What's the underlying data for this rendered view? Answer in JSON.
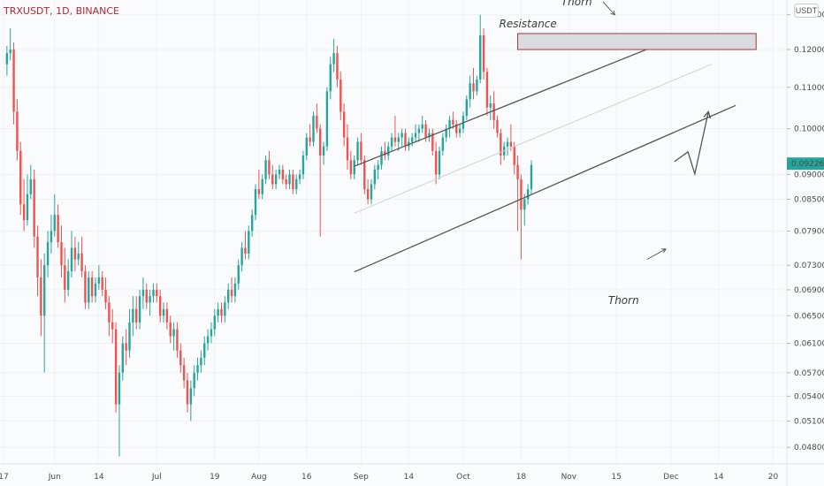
{
  "header": {
    "symbol_label": "TRXUSDT, 1D, BINANCE",
    "currency_label": "USDT"
  },
  "annotations": {
    "resistance": "Resistance",
    "thorn_top": "Thorn",
    "thorn_bottom": "Thorn"
  },
  "colors": {
    "up": "#26a69a",
    "down": "#ef5350",
    "last_price_bg": "#26a69a",
    "line": "#555555",
    "resistance_fill": "#d9dbdf",
    "resistance_border": "#b0303a"
  },
  "chart_data": {
    "type": "candlestick",
    "title": "",
    "xlabel": "",
    "ylabel": "",
    "ylim": [
      0.0462,
      0.1345
    ],
    "y_scale": "log",
    "last_price": 0.09226,
    "y_ticks": [
      0.13,
      0.12,
      0.11,
      0.1,
      0.09,
      0.085,
      0.079,
      0.073,
      0.069,
      0.065,
      0.061,
      0.057,
      0.054,
      0.051,
      0.048
    ],
    "y_tick_labels": [
      "0.13000",
      "0.12000",
      "0.11000",
      "0.10000",
      "0.09000",
      "0.08500",
      "0.07900",
      "0.07300",
      "0.06900",
      "0.06500",
      "0.06100",
      "0.05700",
      "0.05400",
      "0.05100",
      "0.04800"
    ],
    "x_tick_labels": [
      "17",
      "Jun",
      "14",
      "Jul",
      "19",
      "Aug",
      "16",
      "Sep",
      "14",
      "Oct",
      "18",
      "Nov",
      "15",
      "Dec",
      "14",
      "20"
    ],
    "x_tick_days": [
      0,
      15,
      28,
      45,
      62,
      75,
      89,
      105,
      119,
      135,
      152,
      166,
      180,
      196,
      210,
      226
    ],
    "x_start": "2021-05-17",
    "x_end": "2021-12-31",
    "candles": [
      [
        0.116,
        0.121,
        0.113,
        0.119
      ],
      [
        0.119,
        0.126,
        0.117,
        0.12
      ],
      [
        0.12,
        0.122,
        0.101,
        0.104
      ],
      [
        0.104,
        0.107,
        0.093,
        0.095
      ],
      [
        0.095,
        0.097,
        0.082,
        0.084
      ],
      [
        0.084,
        0.089,
        0.079,
        0.081
      ],
      [
        0.081,
        0.09,
        0.08,
        0.086
      ],
      [
        0.086,
        0.092,
        0.085,
        0.089
      ],
      [
        0.089,
        0.091,
        0.076,
        0.078
      ],
      [
        0.078,
        0.08,
        0.068,
        0.071
      ],
      [
        0.071,
        0.074,
        0.062,
        0.065
      ],
      [
        0.065,
        0.075,
        0.057,
        0.073
      ],
      [
        0.073,
        0.079,
        0.071,
        0.077
      ],
      [
        0.077,
        0.082,
        0.075,
        0.079
      ],
      [
        0.079,
        0.086,
        0.078,
        0.082
      ],
      [
        0.082,
        0.084,
        0.076,
        0.077
      ],
      [
        0.077,
        0.08,
        0.071,
        0.073
      ],
      [
        0.073,
        0.076,
        0.067,
        0.069
      ],
      [
        0.069,
        0.074,
        0.068,
        0.072
      ],
      [
        0.072,
        0.079,
        0.071,
        0.076
      ],
      [
        0.076,
        0.078,
        0.072,
        0.074
      ],
      [
        0.074,
        0.077,
        0.073,
        0.075
      ],
      [
        0.075,
        0.078,
        0.071,
        0.072
      ],
      [
        0.072,
        0.073,
        0.066,
        0.067
      ],
      [
        0.067,
        0.072,
        0.066,
        0.071
      ],
      [
        0.071,
        0.072,
        0.067,
        0.068
      ],
      [
        0.068,
        0.071,
        0.067,
        0.07
      ],
      [
        0.07,
        0.073,
        0.069,
        0.071
      ],
      [
        0.071,
        0.072,
        0.068,
        0.069
      ],
      [
        0.069,
        0.071,
        0.066,
        0.067
      ],
      [
        0.067,
        0.068,
        0.062,
        0.064
      ],
      [
        0.064,
        0.066,
        0.061,
        0.063
      ],
      [
        0.063,
        0.064,
        0.052,
        0.053
      ],
      [
        0.053,
        0.058,
        0.047,
        0.057
      ],
      [
        0.057,
        0.062,
        0.056,
        0.061
      ],
      [
        0.061,
        0.063,
        0.058,
        0.06
      ],
      [
        0.06,
        0.066,
        0.059,
        0.064
      ],
      [
        0.064,
        0.068,
        0.062,
        0.066
      ],
      [
        0.066,
        0.068,
        0.063,
        0.064
      ],
      [
        0.064,
        0.069,
        0.063,
        0.068
      ],
      [
        0.068,
        0.071,
        0.066,
        0.069
      ],
      [
        0.069,
        0.07,
        0.066,
        0.067
      ],
      [
        0.067,
        0.069,
        0.065,
        0.068
      ],
      [
        0.068,
        0.07,
        0.067,
        0.069
      ],
      [
        0.069,
        0.07,
        0.067,
        0.068
      ],
      [
        0.068,
        0.069,
        0.064,
        0.065
      ],
      [
        0.065,
        0.067,
        0.064,
        0.066
      ],
      [
        0.066,
        0.067,
        0.063,
        0.064
      ],
      [
        0.064,
        0.065,
        0.061,
        0.062
      ],
      [
        0.062,
        0.064,
        0.06,
        0.063
      ],
      [
        0.063,
        0.064,
        0.059,
        0.06
      ],
      [
        0.06,
        0.061,
        0.057,
        0.058
      ],
      [
        0.058,
        0.059,
        0.055,
        0.056
      ],
      [
        0.056,
        0.057,
        0.052,
        0.053
      ],
      [
        0.053,
        0.056,
        0.051,
        0.055
      ],
      [
        0.055,
        0.058,
        0.054,
        0.057
      ],
      [
        0.057,
        0.059,
        0.056,
        0.058
      ],
      [
        0.058,
        0.06,
        0.057,
        0.059
      ],
      [
        0.059,
        0.062,
        0.058,
        0.061
      ],
      [
        0.061,
        0.063,
        0.06,
        0.062
      ],
      [
        0.062,
        0.064,
        0.061,
        0.063
      ],
      [
        0.063,
        0.066,
        0.062,
        0.065
      ],
      [
        0.065,
        0.067,
        0.064,
        0.066
      ],
      [
        0.066,
        0.067,
        0.064,
        0.065
      ],
      [
        0.065,
        0.068,
        0.064,
        0.067
      ],
      [
        0.067,
        0.07,
        0.066,
        0.069
      ],
      [
        0.069,
        0.071,
        0.067,
        0.068
      ],
      [
        0.068,
        0.071,
        0.067,
        0.07
      ],
      [
        0.07,
        0.074,
        0.069,
        0.073
      ],
      [
        0.073,
        0.077,
        0.072,
        0.076
      ],
      [
        0.076,
        0.079,
        0.074,
        0.075
      ],
      [
        0.075,
        0.08,
        0.074,
        0.079
      ],
      [
        0.079,
        0.083,
        0.078,
        0.082
      ],
      [
        0.082,
        0.088,
        0.081,
        0.087
      ],
      [
        0.087,
        0.091,
        0.085,
        0.086
      ],
      [
        0.086,
        0.09,
        0.085,
        0.089
      ],
      [
        0.089,
        0.094,
        0.088,
        0.093
      ],
      [
        0.093,
        0.095,
        0.089,
        0.09
      ],
      [
        0.09,
        0.092,
        0.087,
        0.088
      ],
      [
        0.088,
        0.091,
        0.087,
        0.09
      ],
      [
        0.09,
        0.092,
        0.089,
        0.091
      ],
      [
        0.091,
        0.092,
        0.088,
        0.089
      ],
      [
        0.089,
        0.09,
        0.087,
        0.088
      ],
      [
        0.088,
        0.091,
        0.087,
        0.09
      ],
      [
        0.09,
        0.091,
        0.086,
        0.087
      ],
      [
        0.087,
        0.09,
        0.086,
        0.089
      ],
      [
        0.089,
        0.091,
        0.088,
        0.09
      ],
      [
        0.09,
        0.095,
        0.089,
        0.094
      ],
      [
        0.094,
        0.099,
        0.093,
        0.098
      ],
      [
        0.098,
        0.101,
        0.096,
        0.097
      ],
      [
        0.097,
        0.104,
        0.096,
        0.103
      ],
      [
        0.103,
        0.106,
        0.099,
        0.1
      ],
      [
        0.1,
        0.101,
        0.078,
        0.094
      ],
      [
        0.094,
        0.097,
        0.092,
        0.096
      ],
      [
        0.096,
        0.11,
        0.095,
        0.109
      ],
      [
        0.109,
        0.118,
        0.107,
        0.116
      ],
      [
        0.116,
        0.123,
        0.114,
        0.119
      ],
      [
        0.119,
        0.121,
        0.11,
        0.112
      ],
      [
        0.112,
        0.114,
        0.102,
        0.104
      ],
      [
        0.104,
        0.106,
        0.096,
        0.098
      ],
      [
        0.098,
        0.101,
        0.091,
        0.093
      ],
      [
        0.093,
        0.095,
        0.089,
        0.09
      ],
      [
        0.09,
        0.094,
        0.089,
        0.093
      ],
      [
        0.093,
        0.098,
        0.092,
        0.097
      ],
      [
        0.097,
        0.099,
        0.092,
        0.093
      ],
      [
        0.093,
        0.094,
        0.086,
        0.087
      ],
      [
        0.087,
        0.089,
        0.084,
        0.085
      ],
      [
        0.085,
        0.089,
        0.084,
        0.088
      ],
      [
        0.088,
        0.092,
        0.087,
        0.091
      ],
      [
        0.091,
        0.093,
        0.089,
        0.092
      ],
      [
        0.092,
        0.096,
        0.091,
        0.095
      ],
      [
        0.095,
        0.097,
        0.093,
        0.094
      ],
      [
        0.094,
        0.097,
        0.093,
        0.096
      ],
      [
        0.096,
        0.099,
        0.095,
        0.098
      ],
      [
        0.098,
        0.103,
        0.096,
        0.097
      ],
      [
        0.097,
        0.099,
        0.095,
        0.098
      ],
      [
        0.098,
        0.1,
        0.096,
        0.099
      ],
      [
        0.099,
        0.1,
        0.095,
        0.096
      ],
      [
        0.096,
        0.098,
        0.095,
        0.097
      ],
      [
        0.097,
        0.099,
        0.096,
        0.098
      ],
      [
        0.098,
        0.101,
        0.097,
        0.099
      ],
      [
        0.099,
        0.101,
        0.097,
        0.1
      ],
      [
        0.1,
        0.103,
        0.099,
        0.101
      ],
      [
        0.101,
        0.102,
        0.097,
        0.098
      ],
      [
        0.098,
        0.1,
        0.097,
        0.099
      ],
      [
        0.099,
        0.1,
        0.094,
        0.095
      ],
      [
        0.095,
        0.097,
        0.088,
        0.09
      ],
      [
        0.09,
        0.096,
        0.089,
        0.095
      ],
      [
        0.095,
        0.099,
        0.094,
        0.098
      ],
      [
        0.098,
        0.101,
        0.097,
        0.1
      ],
      [
        0.1,
        0.103,
        0.098,
        0.102
      ],
      [
        0.102,
        0.104,
        0.1,
        0.101
      ],
      [
        0.101,
        0.102,
        0.098,
        0.099
      ],
      [
        0.099,
        0.101,
        0.098,
        0.1
      ],
      [
        0.1,
        0.104,
        0.099,
        0.103
      ],
      [
        0.103,
        0.108,
        0.102,
        0.107
      ],
      [
        0.107,
        0.113,
        0.105,
        0.111
      ],
      [
        0.111,
        0.115,
        0.107,
        0.109
      ],
      [
        0.109,
        0.113,
        0.108,
        0.112
      ],
      [
        0.112,
        0.13,
        0.111,
        0.124
      ],
      [
        0.124,
        0.126,
        0.112,
        0.114
      ],
      [
        0.114,
        0.115,
        0.103,
        0.105
      ],
      [
        0.105,
        0.108,
        0.102,
        0.106
      ],
      [
        0.106,
        0.109,
        0.1,
        0.102
      ],
      [
        0.102,
        0.103,
        0.098,
        0.099
      ],
      [
        0.099,
        0.1,
        0.092,
        0.094
      ],
      [
        0.094,
        0.097,
        0.093,
        0.096
      ],
      [
        0.096,
        0.098,
        0.094,
        0.097
      ],
      [
        0.097,
        0.101,
        0.095,
        0.096
      ],
      [
        0.096,
        0.097,
        0.09,
        0.092
      ],
      [
        0.092,
        0.094,
        0.079,
        0.089
      ],
      [
        0.089,
        0.09,
        0.074,
        0.083
      ],
      [
        0.083,
        0.086,
        0.08,
        0.085
      ],
      [
        0.085,
        0.088,
        0.084,
        0.087
      ],
      [
        0.087,
        0.093,
        0.086,
        0.092
      ]
    ],
    "lines": [
      {
        "name": "upper-channel",
        "from": {
          "day": 103,
          "price": 0.0917
        },
        "to": {
          "day": 198,
          "price": 0.1235
        }
      },
      {
        "name": "middle-channel",
        "from": {
          "day": 103,
          "price": 0.0823
        },
        "to": {
          "day": 208,
          "price": 0.116
        }
      },
      {
        "name": "lower-channel",
        "from": {
          "day": 103,
          "price": 0.0719
        },
        "to": {
          "day": 215,
          "price": 0.1055
        }
      },
      {
        "name": "resistance-zone",
        "from": {
          "day": 151,
          "price": 0.1245
        },
        "to": {
          "day": 221,
          "price": 0.12
        }
      }
    ],
    "projection": [
      {
        "day": 197,
        "price": 0.0927
      },
      {
        "day": 201,
        "price": 0.0948
      },
      {
        "day": 203,
        "price": 0.0901
      },
      {
        "day": 207,
        "price": 0.104
      }
    ]
  }
}
